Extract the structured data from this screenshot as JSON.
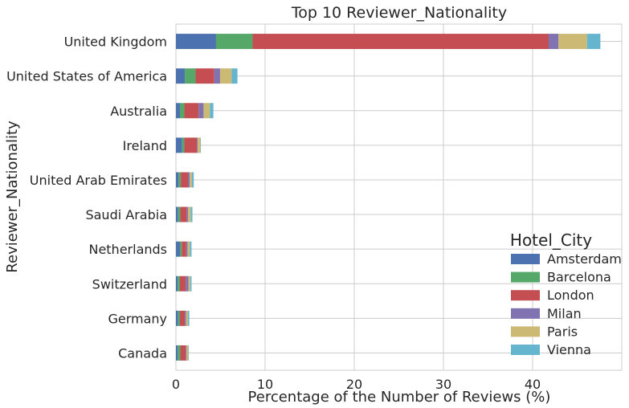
{
  "chart_data": {
    "type": "bar",
    "orientation": "horizontal",
    "stacked": true,
    "title": "Top 10 Reviewer_Nationality",
    "xlabel": "Percentage of the Number of Reviews (%)",
    "ylabel": "Reviewer_Nationality",
    "xlim": [
      0,
      50
    ],
    "xticks": [
      "0",
      "10",
      "20",
      "30",
      "40"
    ],
    "grid": true,
    "legend_title": "Hotel_City",
    "legend_position": "lower-right",
    "categories": [
      "United Kingdom",
      "United States of America",
      "Australia",
      "Ireland",
      "United Arab Emirates",
      "Saudi Arabia",
      "Netherlands",
      "Switzerland",
      "Germany",
      "Canada"
    ],
    "series": [
      {
        "name": "Amsterdam",
        "color": "#4c72b0",
        "values": [
          4.5,
          1.0,
          0.45,
          0.7,
          0.3,
          0.25,
          0.45,
          0.2,
          0.25,
          0.2
        ]
      },
      {
        "name": "Barcelona",
        "color": "#55a868",
        "values": [
          4.1,
          1.2,
          0.5,
          0.25,
          0.25,
          0.25,
          0.2,
          0.25,
          0.2,
          0.3
        ]
      },
      {
        "name": "London",
        "color": "#c44e52",
        "values": [
          33.2,
          2.1,
          1.6,
          1.4,
          0.8,
          0.7,
          0.5,
          0.65,
          0.55,
          0.6
        ]
      },
      {
        "name": "Milan",
        "color": "#8172b2",
        "values": [
          1.1,
          0.65,
          0.55,
          0.1,
          0.2,
          0.15,
          0.15,
          0.3,
          0.15,
          0.1
        ]
      },
      {
        "name": "Paris",
        "color": "#ccb974",
        "values": [
          3.2,
          1.3,
          0.7,
          0.3,
          0.25,
          0.3,
          0.25,
          0.2,
          0.2,
          0.2
        ]
      },
      {
        "name": "Vienna",
        "color": "#64b5cd",
        "values": [
          1.5,
          0.65,
          0.4,
          0.05,
          0.2,
          0.2,
          0.2,
          0.15,
          0.15,
          0.05
        ]
      }
    ]
  }
}
